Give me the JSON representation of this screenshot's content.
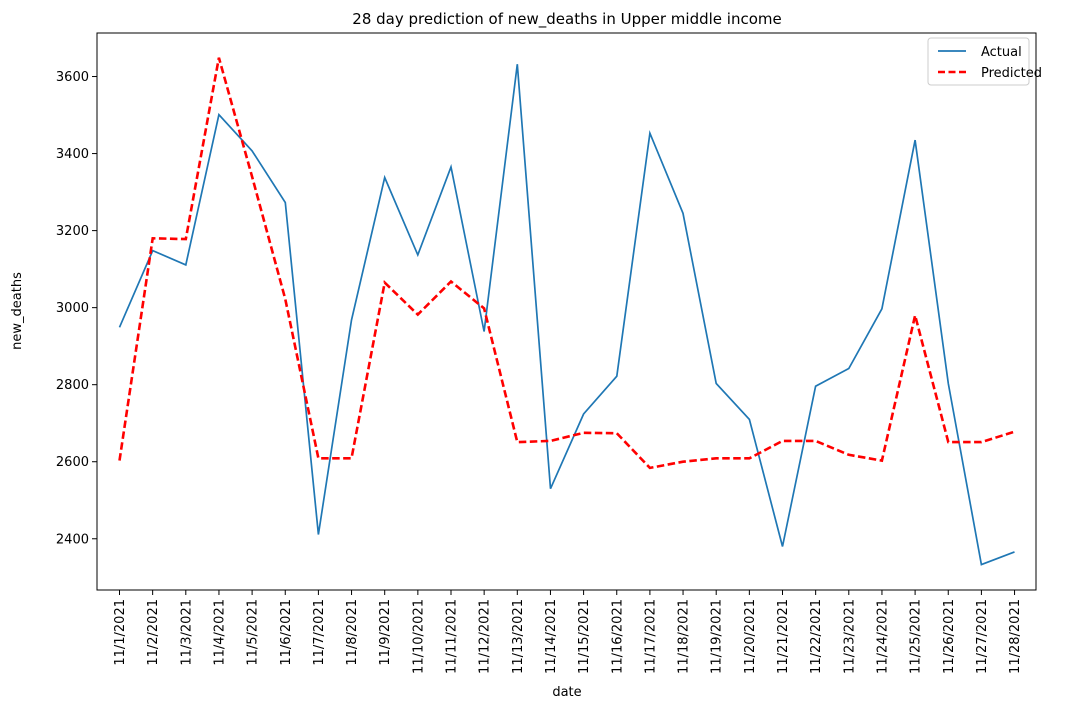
{
  "chart_data": {
    "type": "line",
    "title": "28 day prediction of new_deaths in Upper middle income",
    "xlabel": "date",
    "ylabel": "new_deaths",
    "categories": [
      "11/1/2021",
      "11/2/2021",
      "11/3/2021",
      "11/4/2021",
      "11/5/2021",
      "11/6/2021",
      "11/7/2021",
      "11/8/2021",
      "11/9/2021",
      "11/10/2021",
      "11/11/2021",
      "11/12/2021",
      "11/13/2021",
      "11/14/2021",
      "11/15/2021",
      "11/16/2021",
      "11/17/2021",
      "11/18/2021",
      "11/19/2021",
      "11/20/2021",
      "11/21/2021",
      "11/22/2021",
      "11/23/2021",
      "11/24/2021",
      "11/25/2021",
      "11/26/2021",
      "11/27/2021",
      "11/28/2021"
    ],
    "ylim": [
      2267,
      3713
    ],
    "yticks": [
      2400,
      2600,
      2800,
      3000,
      3200,
      3400,
      3600
    ],
    "grid": false,
    "legend_position": "top-right",
    "series": [
      {
        "name": "Actual",
        "color": "#1f77b4",
        "style": "solid",
        "values": [
          2949,
          3148,
          3111,
          3501,
          3407,
          3273,
          2411,
          2968,
          3338,
          3137,
          3365,
          2938,
          3632,
          2530,
          2724,
          2822,
          3453,
          3245,
          2803,
          2710,
          2380,
          2796,
          2842,
          2997,
          3435,
          2803,
          2333,
          2366
        ]
      },
      {
        "name": "Predicted",
        "color": "#ff0000",
        "style": "dashed",
        "values": [
          2603,
          3180,
          3178,
          3649,
          3340,
          3022,
          2609,
          2609,
          3065,
          2982,
          3068,
          2998,
          2651,
          2654,
          2675,
          2674,
          2584,
          2600,
          2609,
          2609,
          2654,
          2654,
          2618,
          2603,
          2980,
          2651,
          2651,
          2678
        ]
      }
    ]
  }
}
